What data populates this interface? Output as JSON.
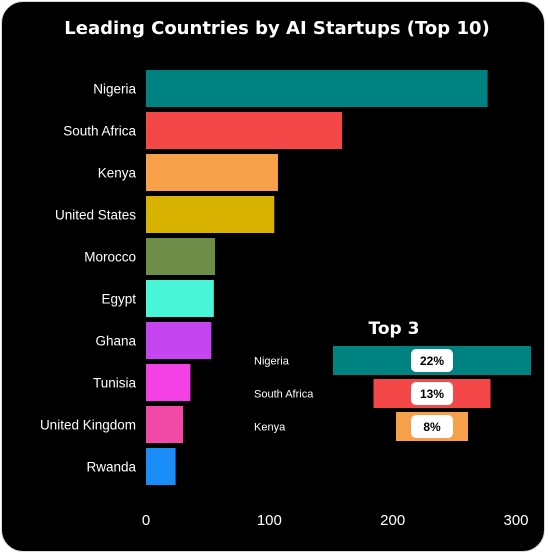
{
  "chart_data": [
    {
      "type": "bar",
      "orientation": "horizontal",
      "title": "Leading Countries by AI Startups (Top 10)",
      "categories": [
        "Nigeria",
        "South Africa",
        "Kenya",
        "United States",
        "Morocco",
        "Egypt",
        "Ghana",
        "Tunisia",
        "United Kingdom",
        "Rwanda"
      ],
      "values": [
        277,
        159,
        107,
        104,
        56,
        55,
        53,
        36,
        30,
        24
      ],
      "colors": [
        "#008280",
        "#f44848",
        "#f6a04a",
        "#d7b300",
        "#6e8d48",
        "#48f5d6",
        "#c546f1",
        "#f441e6",
        "#f04aa6",
        "#1a8cf6"
      ],
      "xticks": [
        0,
        100,
        200,
        300
      ],
      "xlim": [
        0,
        300
      ],
      "grid": false,
      "legend": "none"
    },
    {
      "type": "bar",
      "variant": "funnel",
      "title": "Top 3",
      "categories": [
        "Nigeria",
        "South Africa",
        "Kenya"
      ],
      "values": [
        22,
        13,
        8
      ],
      "labels": [
        "22%",
        "13%",
        "8%"
      ],
      "colors": [
        "#008280",
        "#f44848",
        "#f6a04a"
      ]
    }
  ]
}
